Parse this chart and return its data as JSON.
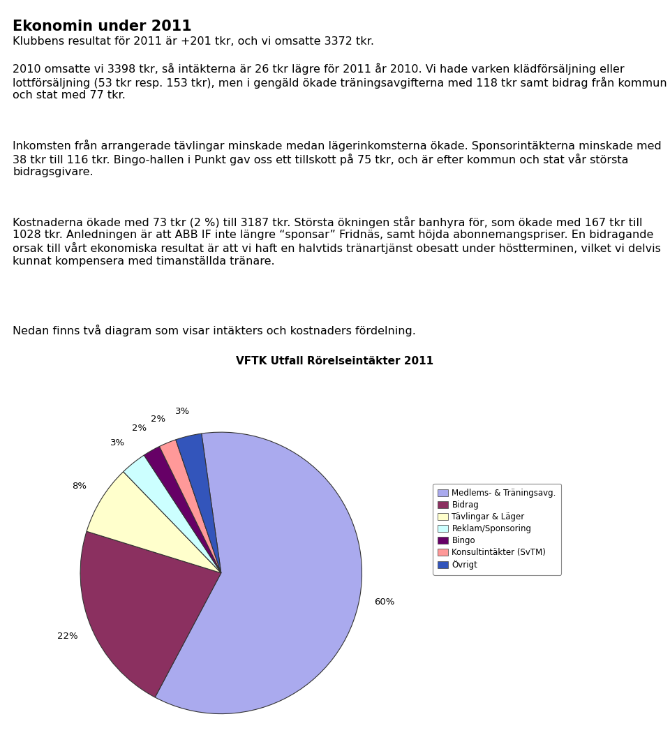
{
  "title": "Ekonomin under 2011",
  "line1": "Klubbens resultat för 2011 är +201 tkr, och vi omsatte 3372 tkr.",
  "para2": "2010 omsatte vi 3398 tkr, så intäkterna är 26 tkr lägre för 2011 år 2010. Vi hade varken klädförsäljning eller lottförsäljning (53 tkr resp. 153 tkr), men i gengäld ökade träningsavgifterna med 118 tkr samt bidrag från kommun och stat med 77 tkr.",
  "para3": "Inkomsten från arrangerade tävlingar minskade medan lägerinkomsterna ökade. Sponsorintäkterna minskade med 38 tkr till 116 tkr. Bingo-hallen i Punkt gav oss ett tillskott på 75 tkr, och är efter kommun och stat vår största bidragsgivare.",
  "para4": "Kostnaderna ökade med 73 tkr (2 %) till 3187 tkr. Största ökningen står banhyra för, som ökade med 167 tkr till 1028 tkr. Anledningen är att ABB IF inte längre “sponsar” Fridnäs, samt höjda abonnemangspriser. En bidragande orsak till vårt ekonomiska resultat är att vi haft en halvtids tränartjänst obesatt under höstterminen, vilket vi delvis kunnat kompensera med timanställda tränare.",
  "para5": "Nedan finns två diagram som visar intäkters och kostnaders fördelning.",
  "chart_title": "VFTK Utfall Rörelseintäkter 2011",
  "pie_values": [
    60,
    22,
    8,
    3,
    2,
    2,
    3
  ],
  "pie_labels": [
    "60%",
    "22%",
    "8%",
    "3%",
    "2%",
    "2%",
    "3%"
  ],
  "pie_colors": [
    "#aaaaee",
    "#8b3060",
    "#ffffcc",
    "#ccffff",
    "#660066",
    "#ff9999",
    "#3355bb"
  ],
  "legend_labels": [
    "Medlems- & Träningsavg.",
    "Bidrag",
    "Tävlingar & Läger",
    "Reklam/Sponsoring",
    "Bingo",
    "Konsultintäkter (SvTM)",
    "Övrigt"
  ],
  "legend_colors": [
    "#aaaaee",
    "#8b3060",
    "#ffffcc",
    "#ccffff",
    "#660066",
    "#ff9999",
    "#3355bb"
  ]
}
